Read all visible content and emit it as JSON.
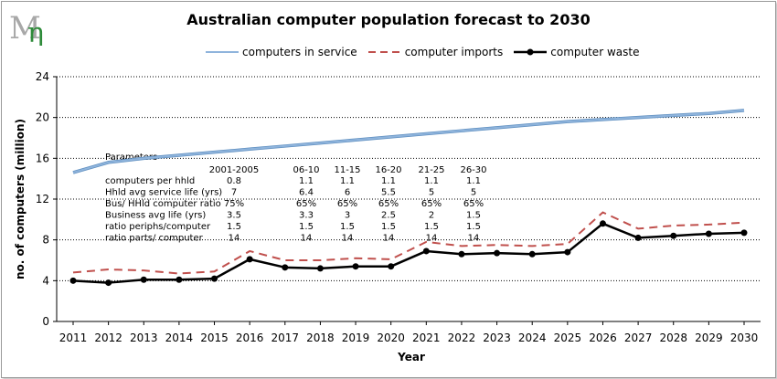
{
  "logo_text": "Mm",
  "chart_data": {
    "type": "line",
    "title": "Australian computer population forecast to 2030",
    "xlabel": "Year",
    "ylabel": "no. of computers (million)",
    "ylim": [
      0,
      24
    ],
    "yticks": [
      0,
      4,
      8,
      12,
      16,
      20,
      24
    ],
    "grid": "horizontal dotted",
    "legend_position": "top-center",
    "x": [
      2011,
      2012,
      2013,
      2014,
      2015,
      2016,
      2017,
      2018,
      2019,
      2020,
      2021,
      2022,
      2023,
      2024,
      2025,
      2026,
      2027,
      2028,
      2029,
      2030
    ],
    "series": [
      {
        "name": "computers in service",
        "color": "#8fb4dc",
        "style": "solid",
        "values": [
          14.6,
          15.6,
          16.0,
          16.3,
          16.6,
          16.9,
          17.2,
          17.5,
          17.8,
          18.1,
          18.4,
          18.7,
          19.0,
          19.3,
          19.6,
          19.8,
          20.0,
          20.2,
          20.4,
          20.7
        ]
      },
      {
        "name": "computer imports",
        "color": "#c0504d",
        "style": "dashed",
        "values": [
          4.8,
          5.1,
          5.0,
          4.7,
          4.9,
          6.9,
          6.0,
          6.0,
          6.2,
          6.1,
          7.8,
          7.4,
          7.5,
          7.4,
          7.6,
          10.7,
          9.1,
          9.4,
          9.5,
          9.7
        ]
      },
      {
        "name": "computer waste",
        "color": "#000000",
        "style": "solid-markers",
        "values": [
          4.0,
          3.8,
          4.1,
          4.1,
          4.2,
          6.1,
          5.3,
          5.2,
          5.4,
          5.4,
          6.9,
          6.6,
          6.7,
          6.6,
          6.8,
          9.6,
          8.2,
          8.4,
          8.6,
          8.7
        ]
      }
    ],
    "parameters": {
      "heading": "Parameters",
      "columns": [
        "2001-2005",
        "06-10",
        "11-15",
        "16-20",
        "21-25",
        "26-30"
      ],
      "rows": [
        {
          "label": "computers per  hhld",
          "values": [
            "0.8",
            "1.1",
            "1.1",
            "1.1",
            "1.1",
            "1.1"
          ]
        },
        {
          "label": "Hhld avg service life (yrs)",
          "values": [
            "7",
            "6.4",
            "6",
            "5.5",
            "5",
            "5"
          ]
        },
        {
          "label": "Bus/ HHld computer ratio",
          "values": [
            "75%",
            "65%",
            "65%",
            "65%",
            "65%",
            "65%"
          ]
        },
        {
          "label": "Business avg life (yrs)",
          "values": [
            "3.5",
            "3.3",
            "3",
            "2.5",
            "2",
            "1.5"
          ]
        },
        {
          "label": "ratio periphs/computer",
          "values": [
            "1.5",
            "1.5",
            "1.5",
            "1.5",
            "1.5",
            "1.5"
          ]
        },
        {
          "label": "ratio parts/ computer",
          "values": [
            "14",
            "14",
            "14",
            "14",
            "14",
            "14"
          ]
        }
      ]
    }
  }
}
